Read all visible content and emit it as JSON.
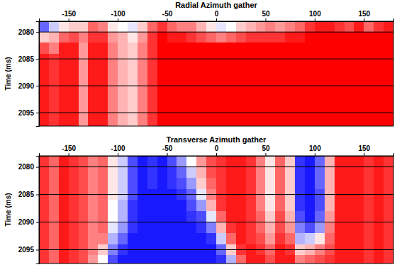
{
  "chart_data": [
    {
      "type": "heatmap",
      "title": "Radial Azimuth gather",
      "y_label": "Time (ms)",
      "x": [
        -175,
        -165,
        -155,
        -145,
        -135,
        -125,
        -115,
        -105,
        -95,
        -85,
        -75,
        -65,
        -55,
        -45,
        -35,
        -25,
        -15,
        -5,
        5,
        15,
        25,
        35,
        45,
        55,
        65,
        75,
        85,
        95,
        105,
        115,
        125,
        135,
        145,
        155,
        165,
        175
      ],
      "y": [
        2079,
        2081,
        2083,
        2085,
        2087,
        2089,
        2091,
        2093,
        2095,
        2097
      ],
      "values": [
        [
          -0.6,
          -0.2,
          0.1,
          0.2,
          0.2,
          0.6,
          0.5,
          0.1,
          0,
          -0.1,
          0.2,
          0.6,
          0.8,
          0.6,
          0.5,
          0.5,
          0.3,
          0.1,
          -0.1,
          0,
          0.2,
          0.3,
          0.4,
          0.5,
          0.4,
          0.5,
          0.6,
          0.8,
          0.9,
          0.9,
          0.8,
          0.7,
          0.9,
          0.6,
          0.8,
          0.9
        ],
        [
          0.2,
          0.3,
          0.6,
          0.7,
          0.5,
          0.8,
          0.8,
          0.4,
          0.3,
          0.1,
          0.4,
          0.8,
          1,
          0.9,
          0.9,
          0.8,
          0.7,
          0.6,
          0.5,
          0.6,
          0.7,
          0.8,
          0.8,
          0.8,
          0.8,
          0.9,
          0.9,
          1,
          1,
          1,
          1,
          1,
          1,
          1,
          1,
          1
        ],
        [
          0.7,
          0.5,
          0.9,
          0.9,
          0.4,
          0.9,
          0.9,
          0.5,
          0.3,
          0.2,
          0.5,
          0.8,
          1,
          1,
          1,
          1,
          1,
          1,
          1,
          1,
          1,
          1,
          1,
          1,
          1,
          1,
          1,
          1,
          1,
          1,
          1,
          1,
          1,
          1,
          1,
          1
        ],
        [
          0.9,
          0.8,
          0.9,
          0.9,
          0.4,
          0.9,
          0.9,
          0.5,
          0.3,
          0.2,
          0.5,
          0.8,
          1,
          1,
          1,
          1,
          1,
          1,
          1,
          1,
          1,
          1,
          1,
          1,
          1,
          1,
          1,
          1,
          1,
          1,
          1,
          1,
          1,
          1,
          1,
          1
        ],
        [
          0.9,
          0.8,
          0.9,
          0.9,
          0.4,
          0.9,
          0.9,
          0.5,
          0.3,
          0.2,
          0.5,
          0.8,
          1,
          1,
          1,
          1,
          1,
          1,
          1,
          1,
          1,
          1,
          1,
          1,
          1,
          1,
          1,
          1,
          1,
          1,
          1,
          1,
          1,
          1,
          1,
          1
        ],
        [
          0.9,
          0.8,
          0.9,
          0.9,
          0.4,
          0.9,
          0.9,
          0.5,
          0.3,
          0.2,
          0.5,
          0.8,
          1,
          1,
          1,
          1,
          1,
          1,
          1,
          1,
          1,
          1,
          1,
          1,
          1,
          1,
          1,
          1,
          1,
          1,
          1,
          1,
          1,
          1,
          1,
          1
        ],
        [
          0.9,
          0.8,
          0.9,
          0.9,
          0.4,
          0.9,
          0.9,
          0.5,
          0.3,
          0.2,
          0.5,
          0.8,
          1,
          1,
          1,
          1,
          1,
          1,
          1,
          1,
          1,
          1,
          1,
          1,
          1,
          1,
          1,
          1,
          1,
          1,
          1,
          1,
          1,
          1,
          1,
          1
        ],
        [
          0.9,
          0.8,
          0.9,
          0.9,
          0.4,
          0.9,
          0.9,
          0.5,
          0.3,
          0.2,
          0.5,
          0.8,
          1,
          1,
          1,
          1,
          1,
          1,
          1,
          1,
          1,
          1,
          1,
          1,
          1,
          1,
          1,
          1,
          1,
          1,
          1,
          1,
          1,
          1,
          1,
          1
        ],
        [
          0.9,
          0.8,
          0.9,
          0.9,
          0.4,
          0.9,
          0.9,
          0.5,
          0.3,
          0.2,
          0.5,
          0.8,
          1,
          1,
          1,
          1,
          1,
          1,
          1,
          1,
          1,
          1,
          1,
          1,
          1,
          1,
          1,
          1,
          1,
          1,
          1,
          1,
          1,
          1,
          1,
          1
        ],
        [
          0.9,
          0.8,
          0.9,
          0.9,
          0.4,
          0.9,
          0.9,
          0.5,
          0.3,
          0.2,
          0.5,
          0.8,
          1,
          1,
          1,
          1,
          1,
          1,
          1,
          1,
          1,
          1,
          1,
          1,
          1,
          1,
          1,
          1,
          1,
          1,
          1,
          1,
          1,
          1,
          1,
          1
        ]
      ],
      "zlim": [
        -1,
        1
      ],
      "xlim": [
        -180,
        180
      ],
      "xticks": [
        -150,
        -100,
        -50,
        0,
        50,
        100,
        150
      ],
      "ylim": [
        2078,
        2097.5
      ],
      "yticks": [
        2080,
        2085,
        2090,
        2095
      ],
      "grid": true
    },
    {
      "type": "heatmap",
      "title": "Transverse Azimuth gather",
      "y_label": "Time (ms)",
      "x": [
        -175,
        -165,
        -155,
        -145,
        -135,
        -125,
        -115,
        -105,
        -95,
        -85,
        -75,
        -65,
        -55,
        -45,
        -35,
        -25,
        -15,
        -5,
        5,
        15,
        25,
        35,
        45,
        55,
        65,
        75,
        85,
        95,
        105,
        115,
        125,
        135,
        145,
        155,
        165,
        175
      ],
      "y": [
        2079,
        2081,
        2083,
        2085,
        2087,
        2089,
        2091,
        2093,
        2095,
        2097
      ],
      "values": [
        [
          0.8,
          0.6,
          0.9,
          0.8,
          0.7,
          0.5,
          0.6,
          0.1,
          -0.2,
          -0.7,
          -0.9,
          -0.8,
          -0.9,
          -0.7,
          -0.4,
          0,
          0.4,
          0.7,
          0.8,
          0.9,
          0.9,
          0.8,
          0.5,
          0.1,
          0.6,
          0.2,
          -0.8,
          -0.9,
          -0.6,
          0.3,
          0.9,
          0.9,
          0.9,
          0.8,
          0.9,
          0.8
        ],
        [
          0.8,
          0.6,
          0.9,
          0.8,
          0.7,
          0.5,
          0.6,
          0.1,
          -0.2,
          -0.7,
          -0.9,
          -0.8,
          -0.9,
          -0.8,
          -0.6,
          -0.2,
          0.3,
          0.7,
          0.8,
          0.9,
          0.9,
          0.8,
          0.5,
          0.1,
          0.6,
          0.2,
          -0.8,
          -0.9,
          -0.6,
          0.3,
          0.9,
          0.9,
          0.9,
          0.8,
          0.9,
          0.8
        ],
        [
          0.8,
          0.6,
          0.9,
          0.8,
          0.7,
          0.5,
          0.6,
          0.1,
          -0.2,
          -0.7,
          -0.9,
          -0.8,
          -0.9,
          -0.8,
          -0.7,
          -0.4,
          0.2,
          0.6,
          0.8,
          0.9,
          0.9,
          0.8,
          0.5,
          0.1,
          0.6,
          0.2,
          -0.8,
          -0.9,
          -0.6,
          0.3,
          0.9,
          0.9,
          0.9,
          0.8,
          0.9,
          0.8
        ],
        [
          0.8,
          0.6,
          0.9,
          0.8,
          0.7,
          0.5,
          0.6,
          0.1,
          -0.2,
          -0.7,
          -0.9,
          -0.9,
          -0.9,
          -0.9,
          -0.8,
          -0.6,
          -0.1,
          0.5,
          0.8,
          0.9,
          0.9,
          0.8,
          0.5,
          0.1,
          0.6,
          0.2,
          -0.8,
          -0.9,
          -0.7,
          0.3,
          0.9,
          0.9,
          0.9,
          0.8,
          0.9,
          0.8
        ],
        [
          0.8,
          0.6,
          0.9,
          0.8,
          0.7,
          0.5,
          0.6,
          0,
          -0.3,
          -0.8,
          -0.9,
          -0.9,
          -0.9,
          -0.9,
          -0.9,
          -0.7,
          -0.4,
          0.3,
          0.8,
          0.9,
          0.9,
          0.8,
          0.5,
          0.1,
          0.6,
          0.2,
          -0.8,
          -0.9,
          -0.7,
          0.3,
          0.9,
          0.9,
          0.9,
          0.8,
          0.9,
          0.8
        ],
        [
          0.8,
          0.6,
          0.9,
          0.8,
          0.7,
          0.5,
          0.6,
          0,
          -0.3,
          -0.8,
          -0.9,
          -0.9,
          -0.9,
          -0.9,
          -0.9,
          -0.8,
          -0.7,
          -0.1,
          0.6,
          0.9,
          0.9,
          0.8,
          0.6,
          0.2,
          0.7,
          0.3,
          -0.7,
          -0.9,
          -0.6,
          0.4,
          0.9,
          0.9,
          0.9,
          0.8,
          0.9,
          0.8
        ],
        [
          0.8,
          0.6,
          0.9,
          0.8,
          0.7,
          0.5,
          0.6,
          -0.1,
          -0.4,
          -0.8,
          -0.9,
          -0.9,
          -0.9,
          -0.9,
          -0.9,
          -0.9,
          -0.8,
          -0.5,
          0.3,
          0.8,
          0.9,
          0.8,
          0.6,
          0.3,
          0.7,
          0.4,
          -0.5,
          -0.7,
          -0.4,
          0.5,
          0.9,
          0.9,
          0.9,
          0.8,
          0.9,
          0.8
        ],
        [
          0.8,
          0.6,
          0.9,
          0.8,
          0.7,
          0.5,
          0.5,
          -0.3,
          -0.6,
          -0.9,
          -0.9,
          -0.9,
          -0.9,
          -0.9,
          -0.9,
          -0.9,
          -0.9,
          -0.8,
          -0.2,
          0.6,
          0.9,
          0.8,
          0.7,
          0.4,
          0.8,
          0.6,
          -0.3,
          -0.2,
          0.1,
          0.6,
          0.9,
          0.9,
          0.9,
          0.8,
          0.9,
          0.8
        ],
        [
          0.8,
          0.6,
          0.9,
          0.8,
          0.7,
          0.5,
          0.2,
          -0.5,
          -0.8,
          -0.9,
          -0.9,
          -0.9,
          -0.9,
          -0.9,
          -0.9,
          -0.9,
          -0.9,
          -0.9,
          -0.6,
          0.2,
          0.8,
          0.9,
          0.8,
          0.6,
          0.9,
          0.8,
          0.2,
          0.3,
          0.5,
          0.7,
          0.9,
          0.9,
          0.9,
          0.8,
          0.9,
          0.8
        ],
        [
          0.8,
          0.6,
          0.9,
          0.8,
          0.7,
          0.4,
          0,
          -0.7,
          -0.9,
          -0.9,
          -0.9,
          -0.9,
          -0.9,
          -0.9,
          -0.9,
          -0.9,
          -0.9,
          -0.9,
          -0.8,
          -0.3,
          0.6,
          0.9,
          0.9,
          0.7,
          0.9,
          0.9,
          0.5,
          0.6,
          0.7,
          0.8,
          0.9,
          0.9,
          0.9,
          0.8,
          0.9,
          0.8
        ]
      ],
      "zlim": [
        -1,
        1
      ],
      "xlim": [
        -180,
        180
      ],
      "xticks": [
        -150,
        -100,
        -50,
        0,
        50,
        100,
        150
      ],
      "ylim": [
        2078,
        2097.5
      ],
      "yticks": [
        2080,
        2085,
        2090,
        2095
      ],
      "grid": true
    }
  ]
}
